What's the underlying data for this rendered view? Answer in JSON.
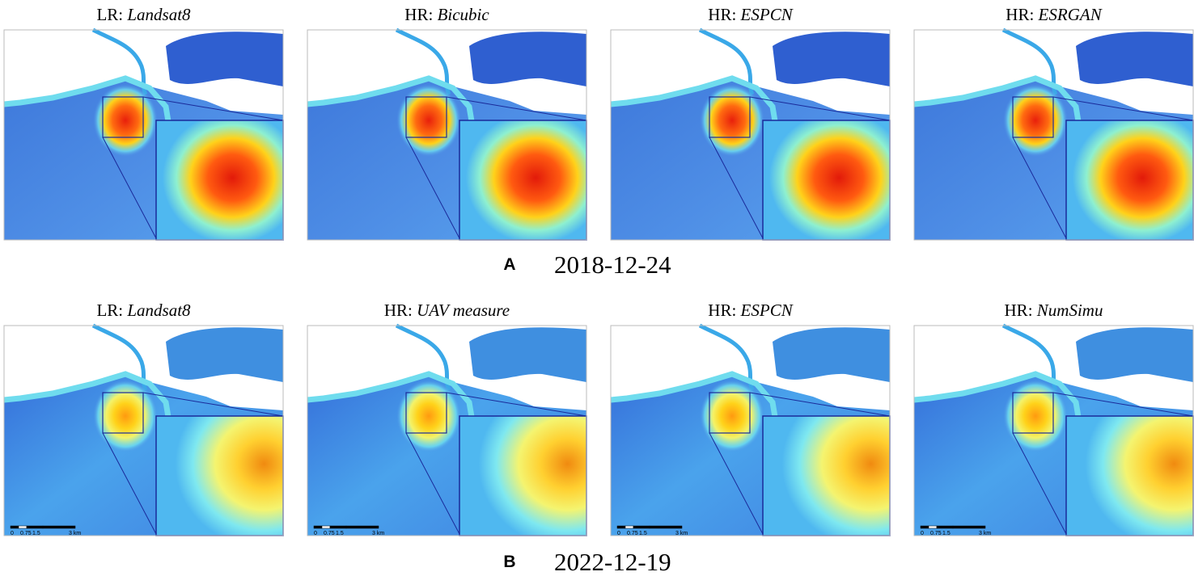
{
  "rows": [
    {
      "label": "A",
      "date": "2018-12-24",
      "panels": [
        {
          "prefix": "LR:",
          "name": "Landsat8"
        },
        {
          "prefix": "HR:",
          "name": "Bicubic"
        },
        {
          "prefix": "HR:",
          "name": "ESPCN"
        },
        {
          "prefix": "HR:",
          "name": "ESRGAN"
        }
      ]
    },
    {
      "label": "B",
      "date": "2022-12-19",
      "panels": [
        {
          "prefix": "LR:",
          "name": "Landsat8"
        },
        {
          "prefix": "HR:",
          "name": "UAV measure"
        },
        {
          "prefix": "HR:",
          "name": "ESPCN"
        },
        {
          "prefix": "HR:",
          "name": "NumSimu"
        }
      ],
      "scale_bar": [
        "0",
        "0.75",
        "1.5",
        "3 km"
      ]
    }
  ]
}
